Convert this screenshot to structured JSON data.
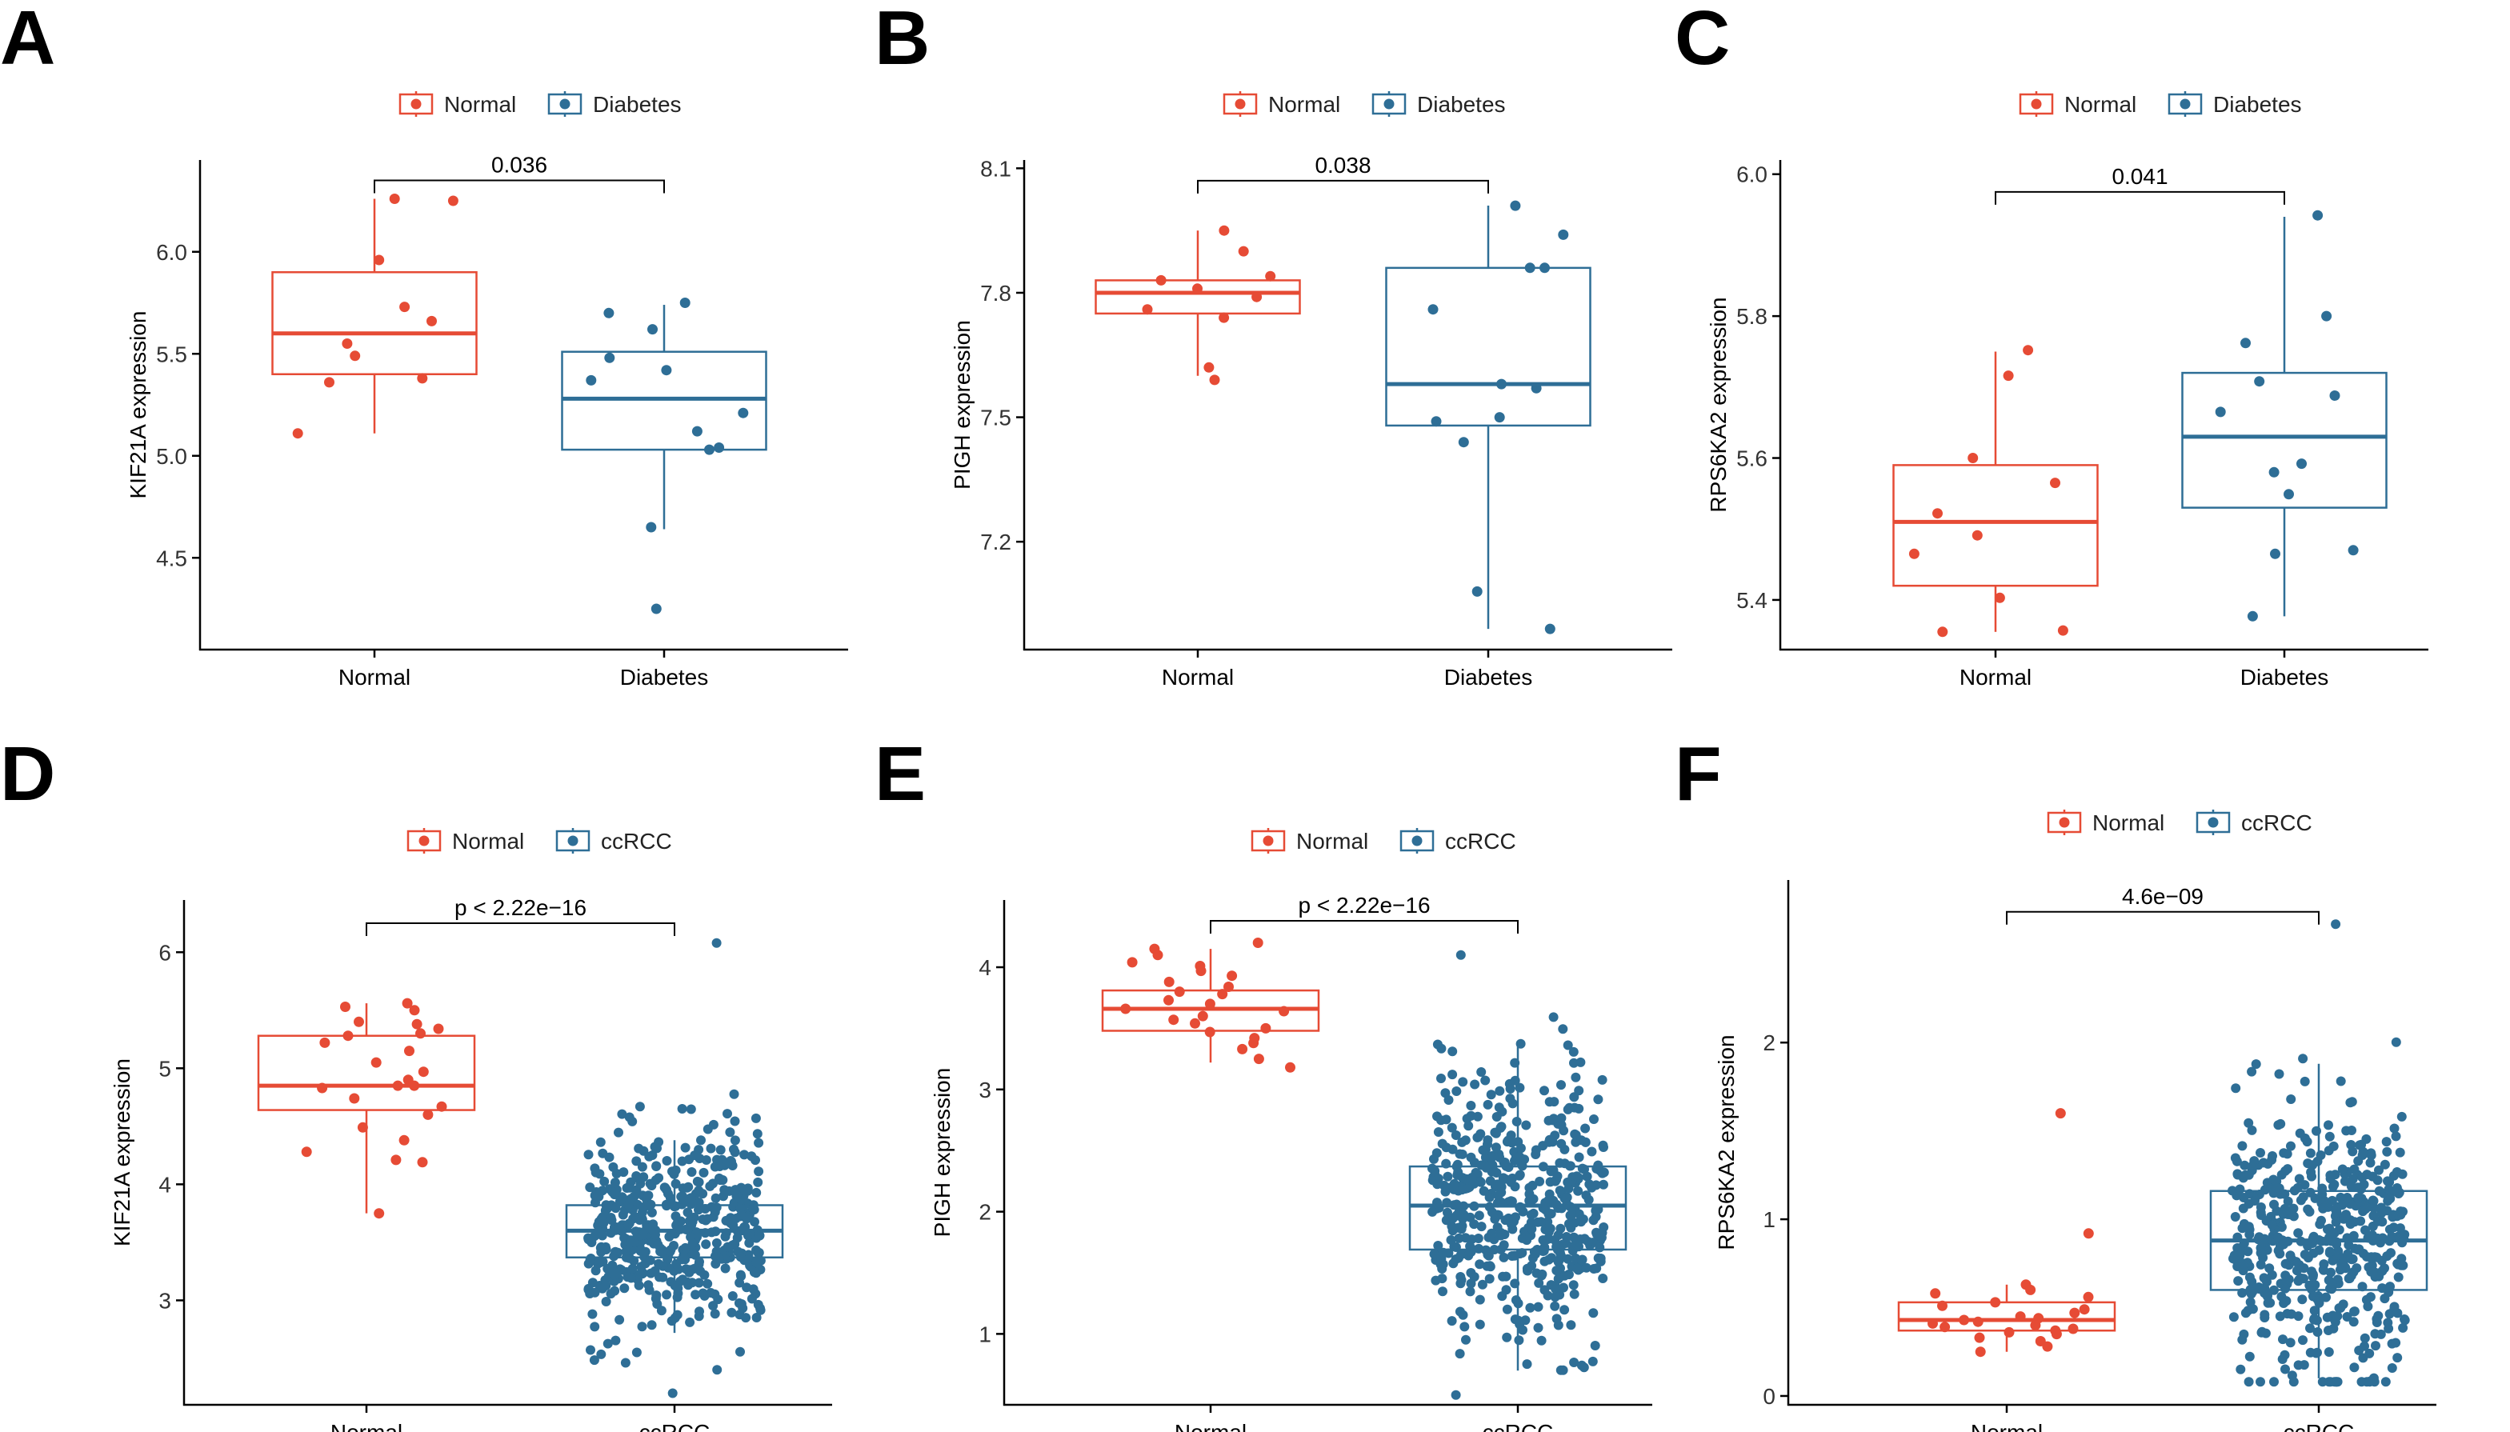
{
  "colors": {
    "normal": "#E64B35",
    "disease": "#2E6E96",
    "axis": "#000000"
  },
  "chart_data": [
    {
      "panel": "A",
      "type": "boxplot_jitter",
      "ylabel": "KIF21A expression",
      "ylim": [
        4.05,
        6.45
      ],
      "yticks": [
        4.5,
        5.0,
        5.5,
        6.0
      ],
      "ytick_labels": [
        "4.5",
        "5.0",
        "5.5",
        "6.0"
      ],
      "categories": [
        "Normal",
        "Diabetes"
      ],
      "legend": [
        "Normal",
        "Diabetes"
      ],
      "p_value": "0.036",
      "bracket_y": 6.35,
      "series": [
        {
          "name": "Normal",
          "box": {
            "min": 5.11,
            "q1": 5.4,
            "median": 5.6,
            "q3": 5.9,
            "max": 6.26
          },
          "points": [
            6.26,
            6.25,
            5.96,
            5.73,
            5.66,
            5.55,
            5.49,
            5.38,
            5.36,
            5.11
          ]
        },
        {
          "name": "Diabetes",
          "box": {
            "min": 4.64,
            "q1": 5.03,
            "median": 5.28,
            "q3": 5.51,
            "max": 5.74
          },
          "points": [
            5.75,
            5.7,
            5.62,
            5.48,
            5.42,
            5.37,
            5.21,
            5.12,
            5.04,
            5.03,
            4.65,
            4.25
          ]
        }
      ]
    },
    {
      "panel": "B",
      "type": "boxplot_jitter",
      "ylabel": "PIGH expression",
      "ylim": [
        6.94,
        8.12
      ],
      "yticks": [
        7.2,
        7.5,
        7.8,
        8.1
      ],
      "ytick_labels": [
        "7.2",
        "7.5",
        "7.8",
        "8.1"
      ],
      "categories": [
        "Normal",
        "Diabetes"
      ],
      "legend": [
        "Normal",
        "Diabetes"
      ],
      "p_value": "0.038",
      "bracket_y": 8.07,
      "series": [
        {
          "name": "Normal",
          "box": {
            "min": 7.6,
            "q1": 7.75,
            "median": 7.8,
            "q3": 7.83,
            "max": 7.95
          },
          "points": [
            7.95,
            7.9,
            7.84,
            7.83,
            7.81,
            7.79,
            7.76,
            7.74,
            7.62,
            7.59
          ]
        },
        {
          "name": "Diabetes",
          "box": {
            "min": 6.99,
            "q1": 7.48,
            "median": 7.58,
            "q3": 7.86,
            "max": 8.01
          },
          "points": [
            8.01,
            7.94,
            7.86,
            7.86,
            7.76,
            7.58,
            7.57,
            7.5,
            7.49,
            7.44,
            7.08,
            6.99
          ]
        }
      ]
    },
    {
      "panel": "C",
      "type": "boxplot_jitter",
      "ylabel": "RPS6KA2 expression",
      "ylim": [
        5.33,
        6.02
      ],
      "yticks": [
        5.4,
        5.6,
        5.8,
        6.0
      ],
      "ytick_labels": [
        "5.4",
        "5.6",
        "5.8",
        "6.0"
      ],
      "categories": [
        "Normal",
        "Diabetes"
      ],
      "legend": [
        "Normal",
        "Diabetes"
      ],
      "p_value": "0.041",
      "bracket_y": 5.975,
      "series": [
        {
          "name": "Normal",
          "box": {
            "min": 5.355,
            "q1": 5.42,
            "median": 5.51,
            "q3": 5.59,
            "max": 5.75
          },
          "points": [
            5.752,
            5.716,
            5.6,
            5.565,
            5.522,
            5.491,
            5.465,
            5.403,
            5.357,
            5.355
          ]
        },
        {
          "name": "Diabetes",
          "box": {
            "min": 5.377,
            "q1": 5.53,
            "median": 5.63,
            "q3": 5.72,
            "max": 5.94
          },
          "points": [
            5.942,
            5.8,
            5.762,
            5.708,
            5.688,
            5.665,
            5.592,
            5.58,
            5.549,
            5.47,
            5.465,
            5.377
          ]
        }
      ]
    },
    {
      "panel": "D",
      "type": "boxplot_jitter",
      "ylabel": "KIF21A expression",
      "ylim": [
        2.1,
        6.45
      ],
      "yticks": [
        3,
        4,
        5,
        6
      ],
      "ytick_labels": [
        "3",
        "4",
        "5",
        "6"
      ],
      "categories": [
        "Normal",
        "ccRCC"
      ],
      "legend": [
        "Normal",
        "ccRCC"
      ],
      "p_value": "p < 2.22e−16",
      "bracket_y": 6.25,
      "series": [
        {
          "name": "Normal",
          "box": {
            "min": 3.75,
            "q1": 4.64,
            "median": 4.85,
            "q3": 5.28,
            "max": 5.56
          },
          "points": [
            5.56,
            5.53,
            5.5,
            5.4,
            5.38,
            5.34,
            5.3,
            5.28,
            5.22,
            5.15,
            5.05,
            4.97,
            4.9,
            4.85,
            4.85,
            4.83,
            4.74,
            4.67,
            4.6,
            4.49,
            4.38,
            4.28,
            4.21,
            4.19,
            3.75
          ]
        },
        {
          "name": "ccRCC",
          "box": {
            "min": 2.72,
            "q1": 3.37,
            "median": 3.6,
            "q3": 3.82,
            "max": 4.38
          },
          "n": 520,
          "spread": {
            "lo": 2.2,
            "hi": 6.08,
            "sd": 0.42
          }
        }
      ]
    },
    {
      "panel": "E",
      "type": "boxplot_jitter",
      "ylabel": "PIGH expression",
      "ylim": [
        0.42,
        4.55
      ],
      "yticks": [
        1,
        2,
        3,
        4
      ],
      "ytick_labels": [
        "1",
        "2",
        "3",
        "4"
      ],
      "categories": [
        "Normal",
        "ccRCC"
      ],
      "legend": [
        "Normal",
        "ccRCC"
      ],
      "p_value": "p < 2.22e−16",
      "bracket_y": 4.38,
      "series": [
        {
          "name": "Normal",
          "box": {
            "min": 3.22,
            "q1": 3.48,
            "median": 3.66,
            "q3": 3.81,
            "max": 4.15
          },
          "points": [
            4.2,
            4.15,
            4.1,
            4.04,
            4.01,
            3.97,
            3.93,
            3.88,
            3.84,
            3.8,
            3.78,
            3.73,
            3.7,
            3.66,
            3.64,
            3.6,
            3.57,
            3.54,
            3.5,
            3.47,
            3.42,
            3.38,
            3.33,
            3.25,
            3.18
          ]
        },
        {
          "name": "ccRCC",
          "box": {
            "min": 0.7,
            "q1": 1.69,
            "median": 2.05,
            "q3": 2.37,
            "max": 3.35
          },
          "n": 520,
          "spread": {
            "lo": 0.5,
            "hi": 4.1,
            "sd": 0.55
          }
        }
      ]
    },
    {
      "panel": "F",
      "type": "boxplot_jitter",
      "ylabel": "RPS6KA2 expression",
      "ylim": [
        -0.05,
        2.92
      ],
      "yticks": [
        0,
        1,
        2
      ],
      "ytick_labels": [
        "0",
        "1",
        "2"
      ],
      "categories": [
        "Normal",
        "ccRCC"
      ],
      "legend": [
        "Normal",
        "ccRCC"
      ],
      "p_value": "4.6e−09",
      "bracket_y": 2.74,
      "series": [
        {
          "name": "Normal",
          "box": {
            "min": 0.25,
            "q1": 0.37,
            "median": 0.43,
            "q3": 0.53,
            "max": 0.63
          },
          "points": [
            1.6,
            0.92,
            0.63,
            0.6,
            0.58,
            0.56,
            0.53,
            0.51,
            0.49,
            0.47,
            0.45,
            0.44,
            0.43,
            0.42,
            0.41,
            0.4,
            0.39,
            0.38,
            0.37,
            0.36,
            0.35,
            0.33,
            0.31,
            0.28,
            0.25
          ]
        },
        {
          "name": "ccRCC",
          "box": {
            "min": 0.1,
            "q1": 0.6,
            "median": 0.88,
            "q3": 1.16,
            "max": 1.88
          },
          "n": 520,
          "spread": {
            "lo": 0.08,
            "hi": 2.67,
            "sd": 0.4
          }
        }
      ]
    }
  ]
}
